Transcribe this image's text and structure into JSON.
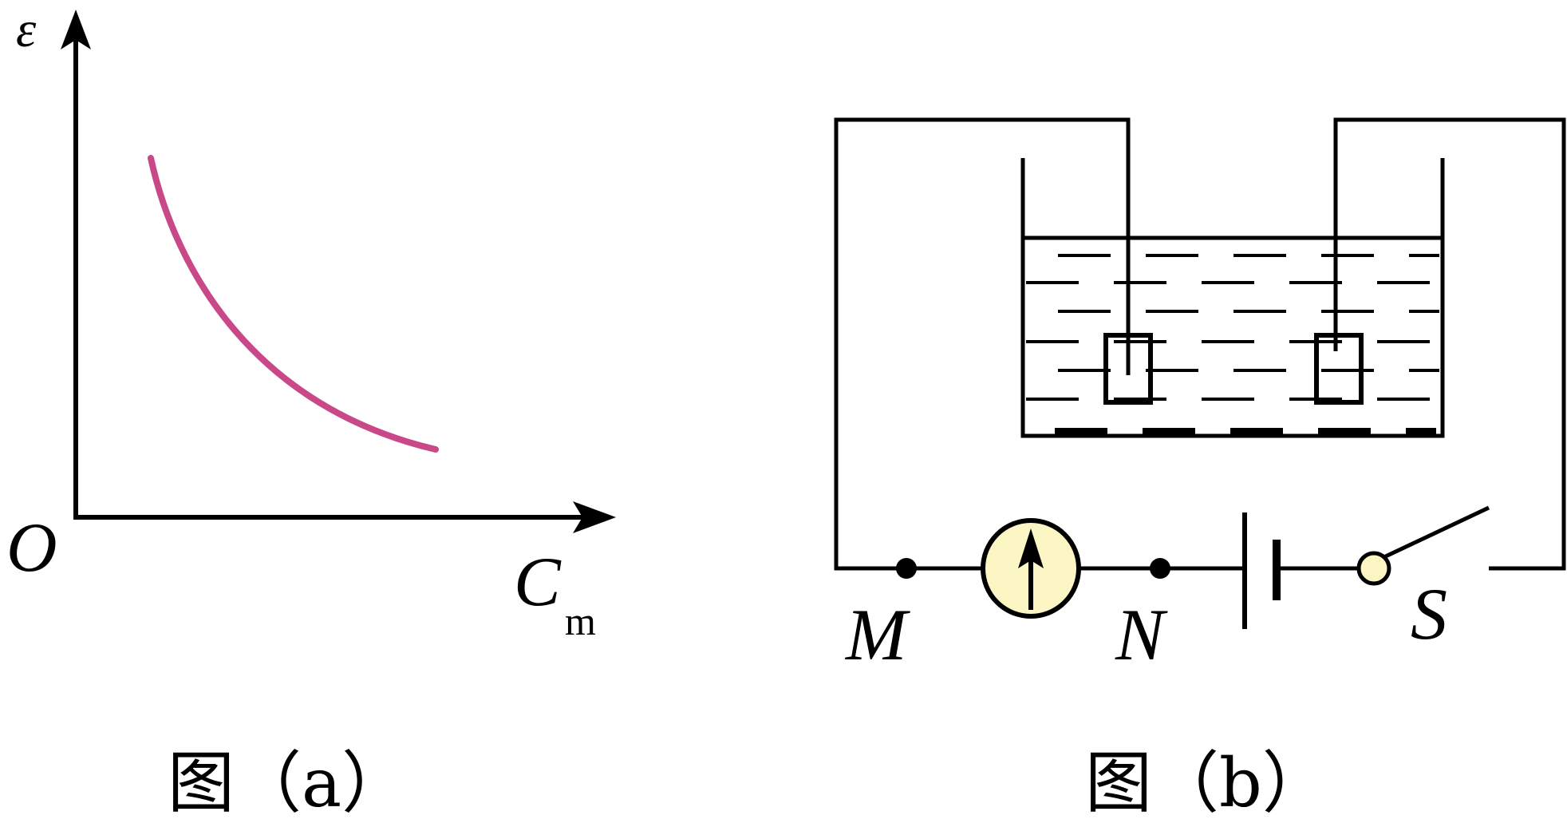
{
  "figure_a": {
    "y_axis_label": "ε",
    "origin_label": "O",
    "x_axis_label_main": "C",
    "x_axis_label_sub": "m",
    "caption": "图（a）",
    "colors": {
      "axes": "#000000",
      "curve": "#c94888"
    }
  },
  "figure_b": {
    "node_left_label": "M",
    "node_right_label": "N",
    "switch_label": "S",
    "caption": "图（b）",
    "colors": {
      "wire": "#000000",
      "meter_fill": "#fbf6c4",
      "switch_contact_fill": "#fbf6c4"
    }
  }
}
